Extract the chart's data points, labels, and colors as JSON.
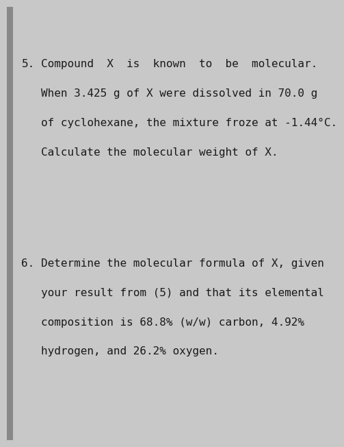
{
  "background_color": "#c8c8c8",
  "page_color": "#d6d6d6",
  "left_bar_color": "#888888",
  "question5_number": "5.",
  "question5_line1": "Compound  X  is  known  to  be  molecular.",
  "question5_line2": "When 3.425 g of X were dissolved in 70.0 g",
  "question5_line3": "of cyclohexane, the mixture froze at -1.44°C.",
  "question5_line4": "Calculate the molecular weight of X.",
  "question6_number": "6.",
  "question6_line1": "Determine the molecular formula of X, given",
  "question6_line2": "your result from (5) and that its elemental",
  "question6_line3": "composition is 68.8% (w/w) carbon, 4.92%",
  "question6_line4": "hydrogen, and 26.2% oxygen.",
  "font_size": 11.5,
  "font_family": "monospace",
  "text_color": "#1a1a1a"
}
